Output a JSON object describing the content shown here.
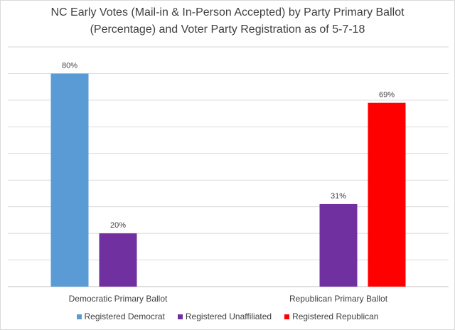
{
  "chart_data": {
    "type": "bar",
    "title_lines": [
      "NC Early Votes (Mail-in & In-Person Accepted) by Party Primary Ballot",
      "(Percentage) and Voter Party Registration as of 5-7-18"
    ],
    "categories": [
      "Democratic Primary Ballot",
      "Republican Primary Ballot"
    ],
    "series": [
      {
        "name": "Registered Democrat",
        "color": "#5b9bd5",
        "values": [
          80,
          null
        ],
        "labels": [
          "80%",
          ""
        ]
      },
      {
        "name": "Registered Unaffiliated",
        "color": "#7030a0",
        "values": [
          20,
          31
        ],
        "labels": [
          "20%",
          "31%"
        ]
      },
      {
        "name": "Registered Republican",
        "color": "#ff0000",
        "values": [
          null,
          69
        ],
        "labels": [
          "",
          "69%"
        ]
      }
    ],
    "ylim": [
      0,
      90
    ],
    "grid_step": 10,
    "grid": true,
    "legend_position": "bottom",
    "xlabel": "",
    "ylabel": ""
  }
}
